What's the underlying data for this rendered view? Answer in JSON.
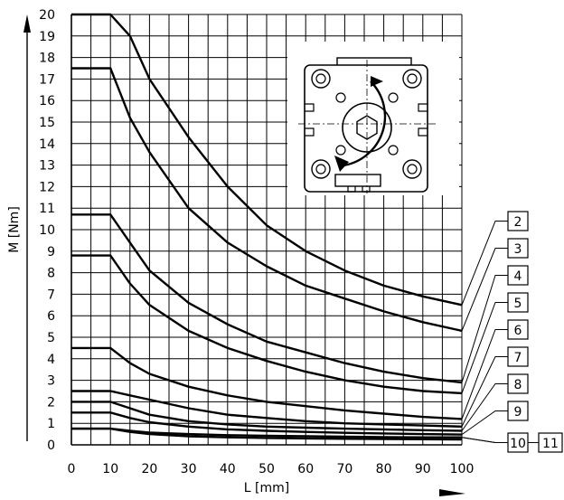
{
  "chart_data": {
    "type": "line",
    "title": "",
    "xlabel": "L [mm]",
    "ylabel": "M [Nm]",
    "xlim": [
      0,
      100
    ],
    "ylim": [
      0,
      20
    ],
    "x_ticks": [
      "0",
      "10",
      "20",
      "30",
      "40",
      "50",
      "60",
      "70",
      "80",
      "90",
      "100"
    ],
    "y_ticks": [
      "0",
      "1",
      "2",
      "3",
      "4",
      "5",
      "6",
      "7",
      "8",
      "9",
      "10",
      "11",
      "12",
      "13",
      "14",
      "15",
      "16",
      "17",
      "18",
      "19",
      "20"
    ],
    "grid": true,
    "series": [
      {
        "name": "2",
        "x": [
          0,
          10,
          15,
          20,
          30,
          40,
          50,
          60,
          70,
          80,
          90,
          100
        ],
        "y": [
          20,
          20,
          19,
          17,
          14.3,
          12,
          10.2,
          9,
          8.1,
          7.4,
          6.9,
          6.5
        ]
      },
      {
        "name": "3",
        "x": [
          0,
          10,
          15,
          20,
          30,
          40,
          50,
          60,
          70,
          80,
          90,
          100
        ],
        "y": [
          17.5,
          17.5,
          15.2,
          13.6,
          11,
          9.4,
          8.3,
          7.4,
          6.8,
          6.2,
          5.7,
          5.3
        ]
      },
      {
        "name": "4",
        "x": [
          0,
          10,
          15,
          20,
          30,
          40,
          50,
          60,
          70,
          80,
          90,
          100
        ],
        "y": [
          10.7,
          10.7,
          9.4,
          8.1,
          6.6,
          5.6,
          4.8,
          4.3,
          3.8,
          3.4,
          3.1,
          2.9
        ]
      },
      {
        "name": "5",
        "x": [
          0,
          10,
          15,
          20,
          30,
          40,
          50,
          60,
          70,
          80,
          90,
          100
        ],
        "y": [
          8.8,
          8.8,
          7.5,
          6.5,
          5.3,
          4.5,
          3.9,
          3.4,
          3.0,
          2.7,
          2.5,
          2.4
        ]
      },
      {
        "name": "6",
        "x": [
          0,
          10,
          15,
          20,
          30,
          40,
          50,
          60,
          70,
          80,
          90,
          100
        ],
        "y": [
          4.5,
          4.5,
          3.8,
          3.3,
          2.7,
          2.3,
          2.0,
          1.8,
          1.6,
          1.45,
          1.3,
          1.2
        ]
      },
      {
        "name": "7",
        "x": [
          0,
          10,
          15,
          20,
          30,
          40,
          50,
          60,
          70,
          80,
          90,
          100
        ],
        "y": [
          2.5,
          2.5,
          2.3,
          2.1,
          1.7,
          1.4,
          1.25,
          1.1,
          1.0,
          0.95,
          0.9,
          0.85
        ]
      },
      {
        "name": "8",
        "x": [
          0,
          10,
          15,
          20,
          30,
          40,
          50,
          60,
          70,
          80,
          90,
          100
        ],
        "y": [
          2.0,
          2.0,
          1.7,
          1.4,
          1.1,
          0.95,
          0.85,
          0.8,
          0.75,
          0.72,
          0.68,
          0.65
        ]
      },
      {
        "name": "9",
        "x": [
          0,
          10,
          15,
          20,
          30,
          40,
          50,
          60,
          70,
          80,
          90,
          100
        ],
        "y": [
          1.5,
          1.5,
          1.25,
          1.05,
          0.85,
          0.72,
          0.65,
          0.6,
          0.56,
          0.53,
          0.5,
          0.48
        ]
      },
      {
        "name": "10",
        "x": [
          0,
          10,
          15,
          20,
          30,
          40,
          50,
          60,
          70,
          80,
          90,
          100
        ],
        "y": [
          0.75,
          0.75,
          0.65,
          0.57,
          0.5,
          0.45,
          0.42,
          0.4,
          0.38,
          0.36,
          0.35,
          0.35
        ]
      },
      {
        "name": "11",
        "x": [
          0,
          10,
          15,
          20,
          30,
          40,
          50,
          60,
          70,
          80,
          90,
          100
        ],
        "y": [
          0.75,
          0.75,
          0.6,
          0.5,
          0.4,
          0.35,
          0.32,
          0.3,
          0.28,
          0.27,
          0.26,
          0.25
        ]
      }
    ],
    "legend": [
      "2",
      "3",
      "4",
      "5",
      "6",
      "7",
      "8",
      "9",
      "10",
      "11"
    ]
  },
  "colors": {
    "line": "#000000",
    "grid": "#000000",
    "background": "#ffffff"
  }
}
